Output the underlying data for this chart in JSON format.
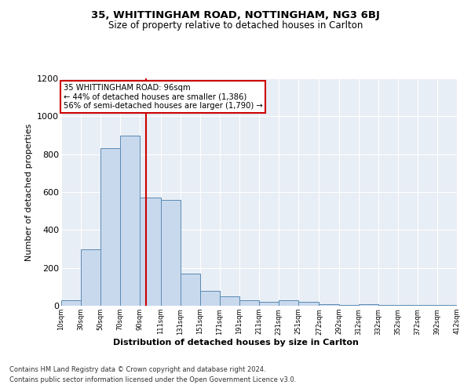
{
  "title1": "35, WHITTINGHAM ROAD, NOTTINGHAM, NG3 6BJ",
  "title2": "Size of property relative to detached houses in Carlton",
  "xlabel": "Distribution of detached houses by size in Carlton",
  "ylabel": "Number of detached properties",
  "footer1": "Contains HM Land Registry data © Crown copyright and database right 2024.",
  "footer2": "Contains public sector information licensed under the Open Government Licence v3.0.",
  "annotation_line1": "35 WHITTINGHAM ROAD: 96sqm",
  "annotation_line2": "← 44% of detached houses are smaller (1,386)",
  "annotation_line3": "56% of semi-detached houses are larger (1,790) →",
  "bar_color": "#c9d9ed",
  "bar_edge_color": "#5a8ab5",
  "vline_color": "#cc0000",
  "vline_x": 96,
  "bin_edges": [
    10,
    30,
    50,
    70,
    90,
    111,
    131,
    151,
    171,
    191,
    211,
    231,
    251,
    272,
    292,
    312,
    332,
    352,
    372,
    392,
    412
  ],
  "bar_heights": [
    30,
    300,
    830,
    900,
    570,
    560,
    170,
    80,
    50,
    30,
    20,
    30,
    20,
    10,
    5,
    10,
    5,
    5,
    3,
    3
  ],
  "ylim": [
    0,
    1200
  ],
  "yticks": [
    0,
    200,
    400,
    600,
    800,
    1000,
    1200
  ],
  "background_color": "#e8eef5",
  "plot_background": "#e8eef5",
  "fig_width": 6.0,
  "fig_height": 5.0,
  "dpi": 100
}
